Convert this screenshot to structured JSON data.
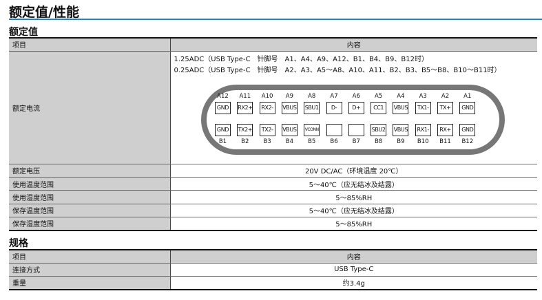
{
  "title": "额定值/性能",
  "rated": {
    "heading": "额定值",
    "col_item": "项目",
    "col_content": "内容",
    "current": {
      "label": "额定电流",
      "line1": "1.25ADC（USB Type-C　针脚号　A1、A4、A9、A12、B1、B4、B9、B12时）",
      "line2": "0.25ADC（USB Type-C　针脚号　A2、A3、A5～A8、A10、A11、B2、B3、B5～B8、B10～B11时）"
    },
    "rows": [
      {
        "label": "额定电压",
        "value": "20V DC/AC（环境温度 20℃）"
      },
      {
        "label": "使用温度范围",
        "value": "5～40℃（应无结冰及结露）"
      },
      {
        "label": "使用湿度范围",
        "value": "5～85%RH"
      },
      {
        "label": "保存温度范围",
        "value": "5～40℃（应无结冰及结露）"
      },
      {
        "label": "保存湿度范围",
        "value": "5～85%RH"
      }
    ]
  },
  "connector": {
    "top_labels": [
      "A12",
      "A11",
      "A10",
      "A9",
      "A8",
      "A7",
      "A6",
      "A5",
      "A4",
      "A3",
      "A2",
      "A1"
    ],
    "top_pins": [
      "GND",
      "RX2+",
      "RX2-",
      "VBUS",
      "SBU1",
      "D-",
      "D+",
      "CC1",
      "VBUS",
      "TX1-",
      "TX+",
      "GND"
    ],
    "bottom_pins": [
      "GND",
      "TX2+",
      "TX2-",
      "VBUS",
      "VCONN",
      "",
      "",
      "SBU2",
      "VBUS",
      "RX1-",
      "RX+",
      "GND"
    ],
    "bottom_labels": [
      "B1",
      "B2",
      "B3",
      "B4",
      "B5",
      "B6",
      "B7",
      "B8",
      "B9",
      "B10",
      "B11",
      "B12"
    ]
  },
  "spec": {
    "heading": "规格",
    "col_item": "项目",
    "col_content": "内容",
    "rows": [
      {
        "label": "连接方式",
        "value": "USB Type-C"
      },
      {
        "label": "重量",
        "value": "约3.4g"
      }
    ]
  }
}
